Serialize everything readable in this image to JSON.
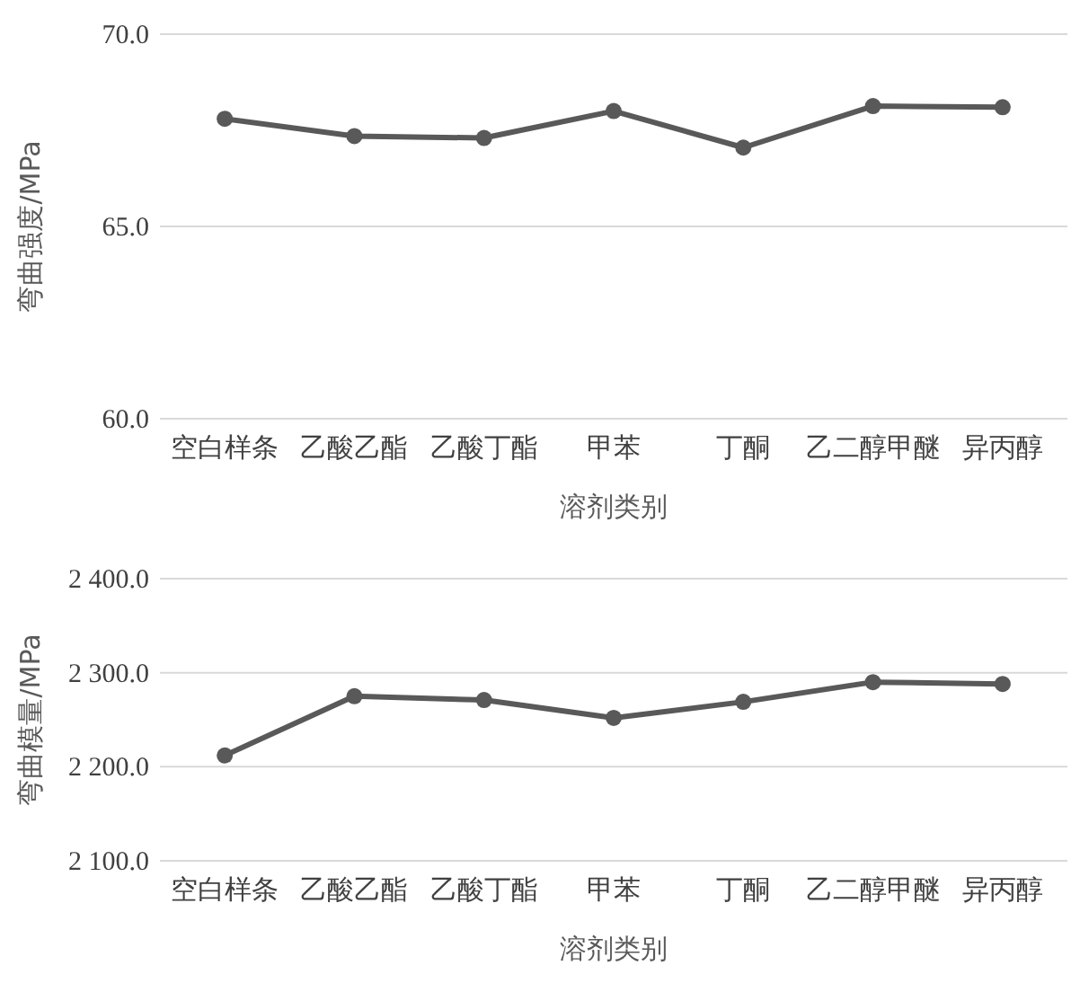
{
  "chart_data": [
    {
      "type": "line",
      "xlabel": "溶剂类别",
      "ylabel": "弯曲强度/MPa",
      "categories": [
        "空白样条",
        "乙酸乙酯",
        "乙酸丁酯",
        "甲苯",
        "丁酮",
        "乙二醇甲醚",
        "异丙醇"
      ],
      "series": [
        {
          "color": "#595959",
          "values": [
            67.8,
            67.35,
            67.3,
            68.0,
            67.05,
            68.13,
            68.1
          ]
        }
      ],
      "ylim": [
        60,
        70
      ],
      "yticks": [
        {
          "value": 60,
          "label": "60.0"
        },
        {
          "value": 65,
          "label": "65.0"
        },
        {
          "value": 70,
          "label": "70.0"
        }
      ],
      "grid": "y",
      "marker": "circle",
      "line_style": "solid"
    },
    {
      "type": "line",
      "xlabel": "溶剂类别",
      "ylabel": "弯曲模量/MPa",
      "categories": [
        "空白样条",
        "乙酸乙酯",
        "乙酸丁酯",
        "甲苯",
        "丁酮",
        "乙二醇甲醚",
        "异丙醇"
      ],
      "series": [
        {
          "color": "#595959",
          "values": [
            2212,
            2275,
            2271,
            2252,
            2269,
            2290,
            2288
          ]
        }
      ],
      "ylim": [
        2100,
        2400
      ],
      "yticks": [
        {
          "value": 2100,
          "label": "2 100.0"
        },
        {
          "value": 2200,
          "label": "2 200.0"
        },
        {
          "value": 2300,
          "label": "2 300.0"
        },
        {
          "value": 2400,
          "label": "2 400.0"
        }
      ],
      "grid": "y",
      "marker": "circle",
      "line_style": "solid"
    }
  ]
}
